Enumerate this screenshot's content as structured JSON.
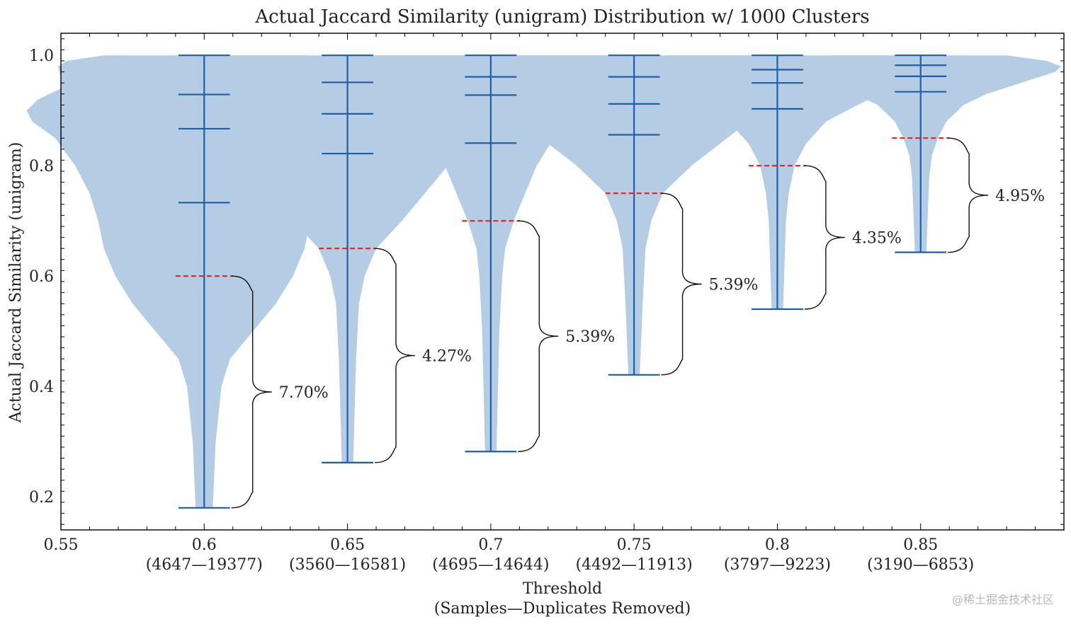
{
  "chart_data": {
    "type": "violin",
    "title": "Actual Jaccard Similarity (unigram) Distribution w/ 1000 Clusters",
    "xlabel": "Threshold",
    "xlabel2": "(Samples—Duplicates Removed)",
    "ylabel": "Actual Jaccard Similarity (unigram)",
    "xlim": [
      0.55,
      0.9
    ],
    "ylim": [
      0.14,
      1.04
    ],
    "x_tick_labels": [
      "0.55",
      "0.6",
      "0.65",
      "0.7",
      "0.75",
      "0.8",
      "0.85"
    ],
    "y_tick_labels": [
      "0.2",
      "0.4",
      "0.6",
      "0.8",
      "1.0"
    ],
    "colors": {
      "violin": "#b5cde4",
      "stat_line": "#1f5ea8",
      "threshold_line": "#e8211d",
      "brace": "#111111"
    },
    "series": [
      {
        "threshold": 0.6,
        "threshold_label": "0.6",
        "counts": "(4647—19377)",
        "min": 0.18,
        "max": 1.0,
        "quantiles": [
          0.733,
          0.867,
          0.929
        ],
        "percent": "7.70%",
        "profile": [
          [
            0.18,
            0.003
          ],
          [
            0.3,
            0.004
          ],
          [
            0.4,
            0.006
          ],
          [
            0.45,
            0.009
          ],
          [
            0.5,
            0.017
          ],
          [
            0.55,
            0.025
          ],
          [
            0.6,
            0.031
          ],
          [
            0.65,
            0.035
          ],
          [
            0.7,
            0.037
          ],
          [
            0.75,
            0.04
          ],
          [
            0.8,
            0.045
          ],
          [
            0.85,
            0.052
          ],
          [
            0.88,
            0.06
          ],
          [
            0.9,
            0.062
          ],
          [
            0.92,
            0.058
          ],
          [
            0.94,
            0.05
          ],
          [
            0.96,
            0.05
          ],
          [
            0.98,
            0.051
          ],
          [
            0.99,
            0.048
          ],
          [
            1.0,
            0.035
          ]
        ]
      },
      {
        "threshold": 0.65,
        "threshold_label": "0.65",
        "counts": "(3560—16581)",
        "min": 0.262,
        "max": 1.0,
        "quantiles": [
          0.822,
          0.894,
          0.951
        ],
        "percent": "4.27%",
        "profile": [
          [
            0.262,
            0.002
          ],
          [
            0.45,
            0.003
          ],
          [
            0.55,
            0.004
          ],
          [
            0.6,
            0.006
          ],
          [
            0.65,
            0.01
          ],
          [
            0.7,
            0.019
          ],
          [
            0.75,
            0.027
          ],
          [
            0.8,
            0.035
          ],
          [
            0.85,
            0.044
          ],
          [
            0.9,
            0.05
          ],
          [
            0.94,
            0.058
          ],
          [
            0.97,
            0.061
          ],
          [
            0.99,
            0.058
          ],
          [
            1.0,
            0.05
          ]
        ]
      },
      {
        "threshold": 0.7,
        "threshold_label": "0.7",
        "counts": "(4695—14644)",
        "min": 0.282,
        "max": 1.0,
        "quantiles": [
          0.841,
          0.928,
          0.961
        ],
        "percent": "5.39%",
        "profile": [
          [
            0.282,
            0.002
          ],
          [
            0.5,
            0.003
          ],
          [
            0.6,
            0.004
          ],
          [
            0.65,
            0.005
          ],
          [
            0.7,
            0.008
          ],
          [
            0.75,
            0.012
          ],
          [
            0.8,
            0.016
          ],
          [
            0.85,
            0.022
          ],
          [
            0.88,
            0.028
          ],
          [
            0.91,
            0.04
          ],
          [
            0.93,
            0.052
          ],
          [
            0.95,
            0.063
          ],
          [
            0.97,
            0.065
          ],
          [
            0.985,
            0.055
          ],
          [
            1.0,
            0.04
          ]
        ]
      },
      {
        "threshold": 0.75,
        "threshold_label": "0.75",
        "counts": "(4492—11913)",
        "min": 0.421,
        "max": 1.0,
        "quantiles": [
          0.856,
          0.912,
          0.961
        ],
        "percent": "5.39%",
        "profile": [
          [
            0.421,
            0.002
          ],
          [
            0.55,
            0.003
          ],
          [
            0.65,
            0.004
          ],
          [
            0.7,
            0.006
          ],
          [
            0.75,
            0.01
          ],
          [
            0.8,
            0.02
          ],
          [
            0.84,
            0.03
          ],
          [
            0.88,
            0.04
          ],
          [
            0.92,
            0.046
          ],
          [
            0.95,
            0.052
          ],
          [
            0.97,
            0.055
          ],
          [
            0.99,
            0.05
          ],
          [
            1.0,
            0.042
          ]
        ]
      },
      {
        "threshold": 0.8,
        "threshold_label": "0.8",
        "counts": "(3797—9223)",
        "min": 0.54,
        "max": 1.0,
        "quantiles": [
          0.903,
          0.95,
          0.974
        ],
        "percent": "4.35%",
        "profile": [
          [
            0.54,
            0.002
          ],
          [
            0.7,
            0.003
          ],
          [
            0.75,
            0.004
          ],
          [
            0.8,
            0.006
          ],
          [
            0.84,
            0.01
          ],
          [
            0.88,
            0.017
          ],
          [
            0.91,
            0.028
          ],
          [
            0.94,
            0.04
          ],
          [
            0.96,
            0.05
          ],
          [
            0.98,
            0.052
          ],
          [
            0.99,
            0.047
          ],
          [
            1.0,
            0.038
          ]
        ]
      },
      {
        "threshold": 0.85,
        "threshold_label": "0.85",
        "counts": "(3190—6853)",
        "min": 0.643,
        "max": 1.0,
        "quantiles": [
          0.934,
          0.962,
          0.982
        ],
        "percent": "4.95%",
        "profile": [
          [
            0.643,
            0.002
          ],
          [
            0.78,
            0.003
          ],
          [
            0.82,
            0.004
          ],
          [
            0.85,
            0.006
          ],
          [
            0.88,
            0.009
          ],
          [
            0.91,
            0.015
          ],
          [
            0.93,
            0.023
          ],
          [
            0.95,
            0.035
          ],
          [
            0.97,
            0.047
          ],
          [
            0.98,
            0.049
          ],
          [
            0.99,
            0.044
          ],
          [
            1.0,
            0.03
          ]
        ]
      }
    ]
  },
  "watermark": "@稀土掘金技术社区"
}
